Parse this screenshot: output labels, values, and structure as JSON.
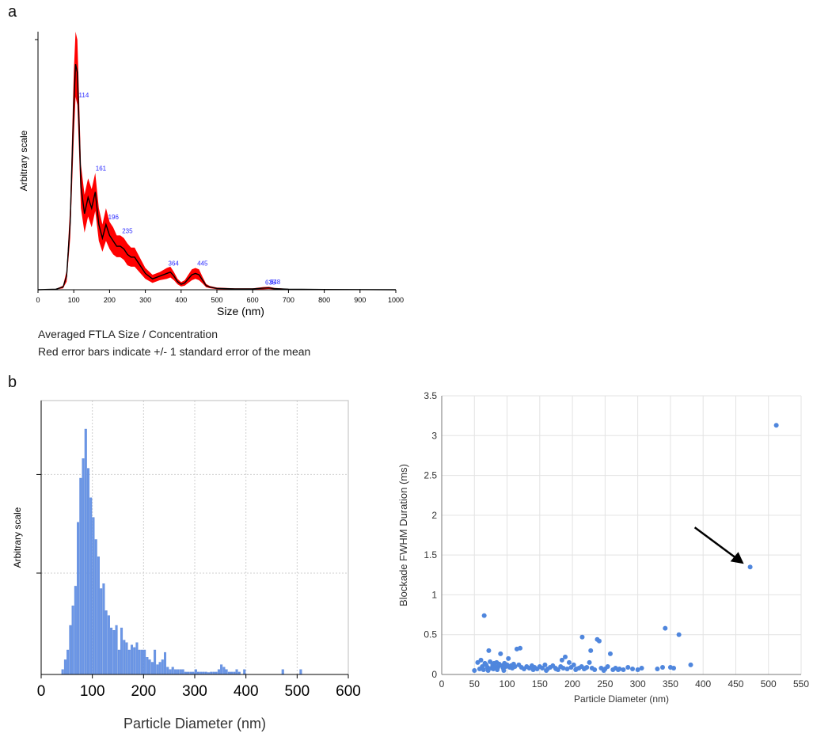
{
  "panels": {
    "a": "a",
    "b": "b"
  },
  "chart_data": [
    {
      "type": "area",
      "id": "nta-size-distribution",
      "xlabel": "Size (nm)",
      "ylabel": "Arbitrary scale",
      "xlim": [
        0,
        1000
      ],
      "xticks": [
        0,
        100,
        200,
        300,
        400,
        500,
        600,
        700,
        800,
        900,
        1000
      ],
      "y_tick_labels": false,
      "caption_lines": [
        "Averaged FTLA Size / Concentration",
        "Red error bars indicate +/- 1 standard error of the mean"
      ],
      "colors": {
        "mean_line": "#000000",
        "error_band": "#ff0000",
        "peak_labels": "#2b2bff"
      },
      "peaks": [
        {
          "size": 114,
          "label": "114"
        },
        {
          "size": 161,
          "label": "161"
        },
        {
          "size": 196,
          "label": "196"
        },
        {
          "size": 235,
          "label": "235"
        },
        {
          "size": 364,
          "label": "364"
        },
        {
          "size": 445,
          "label": "445"
        },
        {
          "size": 635,
          "label": "635"
        },
        {
          "size": 648,
          "label": "648"
        }
      ],
      "series": [
        {
          "x": [
            0,
            50,
            70,
            80,
            90,
            100,
            105,
            110,
            115,
            120,
            130,
            140,
            150,
            160,
            170,
            180,
            190,
            200,
            210,
            220,
            230,
            240,
            250,
            260,
            270,
            280,
            290,
            300,
            320,
            340,
            360,
            370,
            380,
            390,
            400,
            410,
            420,
            430,
            440,
            450,
            460,
            470,
            480,
            500,
            550,
            600,
            630,
            645,
            660,
            700,
            800,
            900,
            1000
          ],
          "mean": [
            0,
            0.2,
            1,
            5,
            25,
            68,
            83,
            80,
            60,
            38,
            28,
            34,
            30,
            36,
            24,
            19,
            24,
            20,
            18,
            16,
            16,
            15,
            13,
            12,
            12,
            10,
            8,
            6,
            4,
            5,
            6,
            6.5,
            5,
            3,
            2,
            2.5,
            4,
            5.5,
            6,
            5.5,
            3.5,
            1.5,
            1,
            0.5,
            0.3,
            0.3,
            0.6,
            0.7,
            0.4,
            0.2,
            0.1,
            0.05,
            0
          ],
          "error": [
            0,
            0.1,
            0.5,
            2,
            6,
            12,
            12,
            12,
            10,
            8,
            7,
            7,
            7,
            7,
            6,
            5,
            6,
            5,
            5,
            4,
            4,
            4,
            4,
            3.5,
            3.5,
            3,
            2.5,
            2,
            1.5,
            1.5,
            2,
            2,
            1.5,
            1,
            0.8,
            1,
            1.5,
            2,
            2,
            2,
            1.2,
            0.6,
            0.4,
            0.3,
            0.2,
            0.2,
            0.4,
            0.4,
            0.3,
            0.1,
            0.1,
            0.05,
            0
          ]
        }
      ]
    },
    {
      "type": "bar",
      "id": "particle-diameter-histogram",
      "xlabel": "Particle Diameter (nm)",
      "ylabel": "Arbitrary scale",
      "xlim": [
        0,
        600
      ],
      "xticks": [
        0,
        100,
        200,
        300,
        400,
        500,
        600
      ],
      "ylim": [
        0,
        100
      ],
      "bar_width": 5,
      "color": "#6b96e6",
      "x": [
        40,
        45,
        50,
        55,
        60,
        65,
        70,
        75,
        80,
        85,
        90,
        95,
        100,
        105,
        110,
        115,
        120,
        125,
        130,
        135,
        140,
        145,
        150,
        155,
        160,
        165,
        170,
        175,
        180,
        185,
        190,
        195,
        200,
        205,
        210,
        215,
        220,
        225,
        230,
        235,
        240,
        245,
        250,
        255,
        260,
        265,
        270,
        275,
        280,
        285,
        290,
        295,
        300,
        305,
        310,
        315,
        320,
        325,
        330,
        335,
        340,
        345,
        350,
        355,
        360,
        365,
        370,
        375,
        380,
        385,
        395,
        470,
        505
      ],
      "values": [
        2,
        6,
        10,
        20,
        28,
        36,
        62,
        80,
        88,
        100,
        84,
        72,
        64,
        55,
        48,
        35,
        37,
        26,
        24,
        19,
        18,
        20,
        10,
        19,
        14,
        13,
        10,
        12,
        11,
        13,
        10,
        10,
        10,
        7,
        6,
        5,
        10,
        4,
        5,
        6,
        9,
        3,
        2,
        3,
        2,
        2,
        2,
        2,
        1,
        1,
        1,
        1,
        2,
        1,
        1,
        1,
        1,
        0.8,
        1,
        1,
        1,
        2,
        4,
        3,
        2,
        1,
        1,
        1,
        2,
        1,
        2,
        2,
        2
      ]
    },
    {
      "type": "scatter",
      "id": "blockade-duration-scatter",
      "xlabel": "Particle Diameter (nm)",
      "ylabel": "Blockade FWHM Duration (ms)",
      "xlim": [
        0,
        550
      ],
      "xticks": [
        0,
        50,
        100,
        150,
        200,
        250,
        300,
        350,
        400,
        450,
        500,
        550
      ],
      "ylim": [
        0,
        3.5
      ],
      "yticks": [
        0,
        0.5,
        1,
        1.5,
        2,
        2.5,
        3,
        3.5
      ],
      "color": "#4f86dd",
      "annotation": {
        "type": "arrow",
        "points_to": [
          472,
          1.35
        ]
      },
      "x": [
        512,
        472,
        65,
        342,
        363,
        215,
        238,
        241,
        120,
        115,
        72,
        228,
        258,
        350,
        381,
        189,
        195,
        184,
        90,
        102,
        55,
        60,
        62,
        66,
        68,
        70,
        74,
        76,
        78,
        80,
        82,
        84,
        86,
        88,
        92,
        94,
        96,
        98,
        100,
        104,
        106,
        108,
        110,
        112,
        118,
        122,
        126,
        130,
        134,
        138,
        142,
        146,
        150,
        154,
        158,
        162,
        166,
        170,
        174,
        178,
        182,
        186,
        192,
        198,
        202,
        206,
        210,
        214,
        218,
        222,
        226,
        230,
        234,
        244,
        250,
        254,
        262,
        266,
        272,
        278,
        285,
        292,
        300,
        306,
        330,
        338,
        355,
        50,
        58,
        64,
        71,
        79,
        85,
        95,
        140,
        160,
        175,
        205,
        220,
        248,
        270
      ],
      "y": [
        3.13,
        1.35,
        0.74,
        0.58,
        0.5,
        0.47,
        0.44,
        0.42,
        0.33,
        0.32,
        0.3,
        0.3,
        0.26,
        0.09,
        0.12,
        0.22,
        0.15,
        0.18,
        0.26,
        0.2,
        0.15,
        0.18,
        0.1,
        0.14,
        0.12,
        0.09,
        0.16,
        0.08,
        0.12,
        0.14,
        0.1,
        0.15,
        0.09,
        0.13,
        0.11,
        0.08,
        0.14,
        0.1,
        0.12,
        0.09,
        0.11,
        0.08,
        0.13,
        0.1,
        0.12,
        0.09,
        0.07,
        0.1,
        0.08,
        0.11,
        0.09,
        0.07,
        0.1,
        0.08,
        0.12,
        0.07,
        0.09,
        0.11,
        0.08,
        0.06,
        0.1,
        0.08,
        0.07,
        0.09,
        0.12,
        0.07,
        0.08,
        0.1,
        0.07,
        0.09,
        0.15,
        0.08,
        0.06,
        0.08,
        0.07,
        0.1,
        0.06,
        0.08,
        0.07,
        0.06,
        0.09,
        0.07,
        0.06,
        0.08,
        0.07,
        0.09,
        0.08,
        0.05,
        0.07,
        0.06,
        0.05,
        0.07,
        0.06,
        0.05,
        0.06,
        0.05,
        0.07,
        0.06,
        0.08,
        0.05,
        0.06
      ]
    }
  ]
}
